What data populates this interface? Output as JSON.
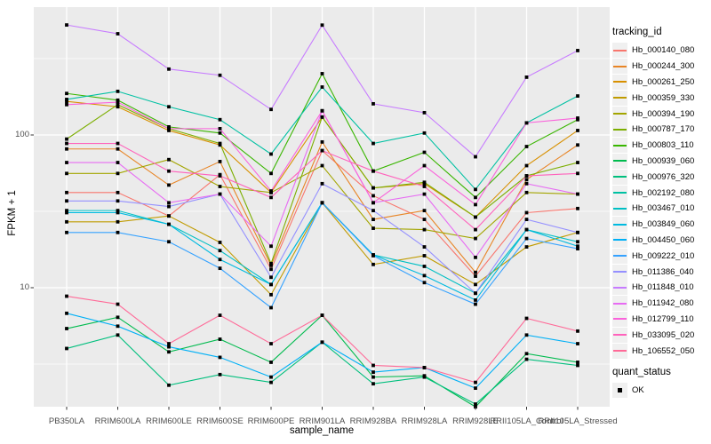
{
  "chart_data": {
    "type": "line",
    "title": "",
    "xlabel": "sample_name",
    "ylabel": "FPKM + 1",
    "y_scale": "log10",
    "grid": "on",
    "legend_position": "right",
    "ylim": [
      1.65,
      690
    ],
    "y_ticks": [
      {
        "label": "100",
        "value": 100
      },
      {
        "label": "10",
        "value": 10
      }
    ],
    "y_minor_gridlines": [
      3.162,
      31.62,
      316.2
    ],
    "point_shape": "square",
    "point_color": "#000000",
    "categories": [
      "PB350LA",
      "RRIM600LA",
      "RRIM600LE",
      "RRIM600SE",
      "RRIM600PE",
      "RRIM901LA",
      "RRIM928BA",
      "RRIM928LA",
      "RRIM928LE",
      "RRII105LA_Control",
      "RRII105LA_Stressed"
    ],
    "series": [
      {
        "name": "Hb_000140_080",
        "color": "#F8766D",
        "values": [
          42,
          42,
          29.5,
          55,
          13.2,
          79,
          40,
          28,
          11.9,
          31,
          33
        ]
      },
      {
        "name": "Hb_000244_300",
        "color": "#E88526",
        "values": [
          81,
          81,
          47,
          67,
          14,
          90,
          28,
          32,
          12.6,
          51,
          86
        ]
      },
      {
        "name": "Hb_000261_250",
        "color": "#D89000",
        "values": [
          166,
          153,
          107,
          86,
          42,
          131,
          45,
          48,
          29,
          63,
          107
        ]
      },
      {
        "name": "Hb_000359_330",
        "color": "#C09B00",
        "values": [
          27,
          27,
          29.5,
          19.8,
          9,
          36,
          14.2,
          16.2,
          10.5,
          18.5,
          23
        ]
      },
      {
        "name": "Hb_000394_190",
        "color": "#A3A500",
        "values": [
          56,
          56,
          69,
          46,
          42,
          63,
          24.5,
          24,
          21,
          42,
          41
        ]
      },
      {
        "name": "Hb_000787_170",
        "color": "#7CAE00",
        "values": [
          94,
          158,
          110,
          88,
          14.4,
          131,
          45,
          49,
          29,
          54,
          66
        ]
      },
      {
        "name": "Hb_000803_110",
        "color": "#39B600",
        "values": [
          187,
          169,
          113,
          103,
          56,
          252,
          58,
          77,
          39,
          84,
          126
        ]
      },
      {
        "name": "Hb_000939_060",
        "color": "#00BB4E",
        "values": [
          5.4,
          6.4,
          3.8,
          4.6,
          3.25,
          6.6,
          2.6,
          2.65,
          1.66,
          3.7,
          3.25
        ]
      },
      {
        "name": "Hb_000976_320",
        "color": "#00BF7D",
        "values": [
          4.0,
          4.9,
          2.3,
          2.7,
          2.4,
          4.4,
          2.35,
          2.6,
          1.73,
          3.4,
          3.1
        ]
      },
      {
        "name": "Hb_002192_080",
        "color": "#00C1A3",
        "values": [
          171,
          193,
          153,
          126,
          75,
          206,
          88,
          103,
          44,
          120,
          180
        ]
      },
      {
        "name": "Hb_003467_010",
        "color": "#00BFC4",
        "values": [
          32,
          32,
          26,
          17.5,
          10.5,
          36,
          16.4,
          13.8,
          9.2,
          24,
          20
        ]
      },
      {
        "name": "Hb_003849_060",
        "color": "#00BAE0",
        "values": [
          31,
          31,
          26,
          15.3,
          10.5,
          36,
          16.4,
          12,
          8.3,
          24,
          18.7
        ]
      },
      {
        "name": "Hb_004450_060",
        "color": "#00B0F6",
        "values": [
          6.8,
          5.6,
          4.1,
          3.5,
          2.6,
          4.4,
          2.8,
          3.0,
          2.2,
          4.9,
          4.3
        ]
      },
      {
        "name": "Hb_009222_010",
        "color": "#35A2FF",
        "values": [
          23,
          23,
          20,
          13.4,
          7.4,
          36,
          16.2,
          10.8,
          7.8,
          21,
          18
        ]
      },
      {
        "name": "Hb_011386_040",
        "color": "#9590FF",
        "values": [
          37,
          37,
          34,
          41,
          11.7,
          48,
          32,
          18.5,
          9.2,
          28,
          23
        ]
      },
      {
        "name": "Hb_011848_010",
        "color": "#C77CFF",
        "values": [
          525,
          460,
          270,
          246,
          147,
          524,
          160,
          140,
          72,
          239,
          357
        ]
      },
      {
        "name": "Hb_011942_080",
        "color": "#E76BF3",
        "values": [
          66,
          66,
          36,
          41,
          18.7,
          144,
          36,
          41,
          15.8,
          48,
          41
        ]
      },
      {
        "name": "Hb_012799_110",
        "color": "#FA62DB",
        "values": [
          158,
          164,
          110,
          110,
          43,
          144,
          36,
          63,
          35,
          120,
          129
        ]
      },
      {
        "name": "Hb_033095_020",
        "color": "#FF62BC",
        "values": [
          88,
          88,
          58,
          54,
          39,
          79,
          58,
          46,
          24,
          54,
          56
        ]
      },
      {
        "name": "Hb_106552_050",
        "color": "#FF6A98",
        "values": [
          8.8,
          7.8,
          4.3,
          6.6,
          4.3,
          6.6,
          3.1,
          3.0,
          2.4,
          6.3,
          5.2
        ]
      }
    ]
  },
  "legend": {
    "tracking_title": "tracking_id",
    "quant_title": "quant_status",
    "quant_items": [
      {
        "label": "OK"
      }
    ]
  },
  "colors": {
    "panel_bg": "#EBEBEB",
    "grid": "#FFFFFF",
    "tick_mark": "#333333",
    "tick_label": "#4D4D4D",
    "text": "#000000",
    "legend_key_bg": "#F0F0F0",
    "point": "#000000"
  }
}
